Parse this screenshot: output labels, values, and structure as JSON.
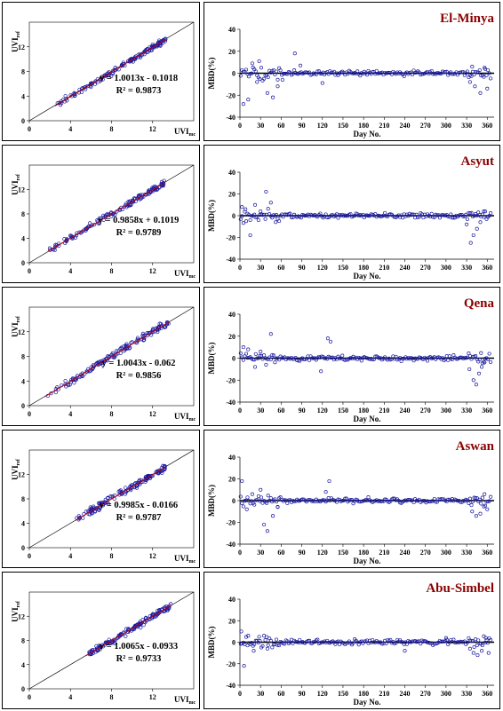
{
  "colors": {
    "marker": "#1a1aa0",
    "fit_line": "#cc0000",
    "station": "#8b0000"
  },
  "chart_data": [
    {
      "type": "scatter",
      "panel": "el-minya-scatter",
      "xlabel": "UVI",
      "xlabel_sub": "mc",
      "ylabel": "UVI",
      "ylabel_sub": "ref",
      "xlim": [
        0,
        16
      ],
      "ylim": [
        0,
        16
      ],
      "xticks": [
        "0",
        "4",
        "8",
        "12"
      ],
      "yticks": [
        "0",
        "4",
        "8",
        "12"
      ],
      "fit": {
        "slope": 1.0013,
        "intercept": -0.1018
      },
      "equation": "y = 1.0013x - 0.1018",
      "r2": "R² = 0.9873",
      "xmin": 2.5,
      "xmax": 13.3,
      "spread": 0.45,
      "seed": 11
    },
    {
      "type": "scatter",
      "panel": "el-minya-mbd",
      "xlabel": "Day No.",
      "ylabel": "MBD(%)",
      "title": "El-Minya",
      "xlim": [
        0,
        370
      ],
      "ylim": [
        -40,
        40
      ],
      "xticks": [
        "0",
        "30",
        "60",
        "90",
        "120",
        "150",
        "180",
        "210",
        "240",
        "270",
        "300",
        "330",
        "360"
      ],
      "yticks": [
        "40",
        "20",
        "0",
        "-20",
        "-40"
      ],
      "seed": 21,
      "outliers": [
        [
          5,
          -28
        ],
        [
          12,
          -24
        ],
        [
          18,
          9
        ],
        [
          25,
          -8
        ],
        [
          28,
          11
        ],
        [
          40,
          -18
        ],
        [
          48,
          -22
        ],
        [
          55,
          -12
        ],
        [
          62,
          -6
        ],
        [
          80,
          18
        ],
        [
          88,
          7
        ],
        [
          120,
          -9
        ],
        [
          335,
          -8
        ],
        [
          338,
          6
        ],
        [
          342,
          -12
        ],
        [
          350,
          -18
        ],
        [
          356,
          5
        ],
        [
          360,
          -14
        ]
      ]
    },
    {
      "type": "scatter",
      "panel": "asyut-scatter",
      "xlabel": "UVI",
      "xlabel_sub": "mc",
      "ylabel": "UVI",
      "ylabel_sub": "ref",
      "xlim": [
        0,
        16
      ],
      "ylim": [
        0,
        16
      ],
      "xticks": [
        "0",
        "4",
        "8",
        "12"
      ],
      "yticks": [
        "0",
        "4",
        "8",
        "12"
      ],
      "fit": {
        "slope": 0.9858,
        "intercept": 0.1019
      },
      "equation": "y = 0.9858x + 0.1019",
      "r2": "R² = 0.9789",
      "xmin": 1.8,
      "xmax": 13.2,
      "spread": 0.5,
      "seed": 12
    },
    {
      "type": "scatter",
      "panel": "asyut-mbd",
      "xlabel": "Day No.",
      "ylabel": "MBD(%)",
      "title": "Asyut",
      "xlim": [
        0,
        370
      ],
      "ylim": [
        -40,
        40
      ],
      "xticks": [
        "0",
        "30",
        "60",
        "90",
        "120",
        "150",
        "180",
        "210",
        "240",
        "270",
        "300",
        "330",
        "360"
      ],
      "yticks": [
        "40",
        "20",
        "0",
        "-20",
        "-40"
      ],
      "seed": 22,
      "outliers": [
        [
          3,
          8
        ],
        [
          8,
          6
        ],
        [
          15,
          -18
        ],
        [
          22,
          10
        ],
        [
          30,
          4
        ],
        [
          38,
          22
        ],
        [
          45,
          12
        ],
        [
          52,
          -6
        ],
        [
          330,
          -8
        ],
        [
          336,
          -25
        ],
        [
          340,
          -18
        ],
        [
          345,
          -12
        ],
        [
          350,
          -6
        ],
        [
          355,
          4
        ]
      ]
    },
    {
      "type": "scatter",
      "panel": "qena-scatter",
      "xlabel": "UVI",
      "xlabel_sub": "mc",
      "ylabel": "UVI",
      "ylabel_sub": "ref",
      "xlim": [
        0,
        16
      ],
      "ylim": [
        0,
        16
      ],
      "xticks": [
        "0",
        "4",
        "8",
        "12"
      ],
      "yticks": [
        "0",
        "4",
        "8",
        "12"
      ],
      "fit": {
        "slope": 1.0043,
        "intercept": -0.062
      },
      "equation": "y = 1.0043x - 0.062",
      "r2": "R² = 0.9856",
      "xmin": 1.5,
      "xmax": 13.6,
      "spread": 0.55,
      "seed": 13
    },
    {
      "type": "scatter",
      "panel": "qena-mbd",
      "xlabel": "Day No.",
      "ylabel": "MBD(%)",
      "title": "Qena",
      "xlim": [
        0,
        370
      ],
      "ylim": [
        -40,
        40
      ],
      "xticks": [
        "0",
        "30",
        "60",
        "90",
        "120",
        "150",
        "180",
        "210",
        "240",
        "270",
        "300",
        "330",
        "360"
      ],
      "yticks": [
        "40",
        "20",
        "0",
        "-20",
        "-40"
      ],
      "seed": 23,
      "outliers": [
        [
          5,
          10
        ],
        [
          12,
          8
        ],
        [
          22,
          -8
        ],
        [
          30,
          6
        ],
        [
          38,
          -6
        ],
        [
          45,
          22
        ],
        [
          128,
          18
        ],
        [
          132,
          15
        ],
        [
          118,
          -12
        ],
        [
          334,
          -10
        ],
        [
          340,
          -20
        ],
        [
          344,
          -24
        ],
        [
          348,
          -14
        ],
        [
          352,
          -8
        ],
        [
          356,
          -4
        ]
      ]
    },
    {
      "type": "scatter",
      "panel": "aswan-scatter",
      "xlabel": "UVI",
      "xlabel_sub": "mc",
      "ylabel": "UVI",
      "ylabel_sub": "ref",
      "xlim": [
        0,
        16
      ],
      "ylim": [
        0,
        16
      ],
      "xticks": [
        "0",
        "4",
        "8",
        "12"
      ],
      "yticks": [
        "0",
        "4",
        "8",
        "12"
      ],
      "fit": {
        "slope": 0.9985,
        "intercept": -0.0166
      },
      "equation": "y = 0.9985x - 0.0166",
      "r2": "R² = 0.9787",
      "xmin": 4.5,
      "xmax": 13.2,
      "spread": 0.5,
      "seed": 14
    },
    {
      "type": "scatter",
      "panel": "aswan-mbd",
      "xlabel": "Day No.",
      "ylabel": "MBD(%)",
      "title": "Aswan",
      "xlim": [
        0,
        370
      ],
      "ylim": [
        -40,
        40
      ],
      "xticks": [
        "0",
        "30",
        "60",
        "90",
        "120",
        "150",
        "180",
        "210",
        "240",
        "270",
        "300",
        "330",
        "360"
      ],
      "yticks": [
        "40",
        "20",
        "0",
        "-20",
        "-40"
      ],
      "seed": 24,
      "outliers": [
        [
          3,
          18
        ],
        [
          10,
          -8
        ],
        [
          18,
          6
        ],
        [
          30,
          10
        ],
        [
          35,
          -22
        ],
        [
          40,
          -28
        ],
        [
          48,
          -14
        ],
        [
          55,
          -6
        ],
        [
          130,
          18
        ],
        [
          125,
          8
        ],
        [
          338,
          -10
        ],
        [
          344,
          -14
        ],
        [
          350,
          -12
        ],
        [
          356,
          6
        ],
        [
          360,
          -8
        ]
      ]
    },
    {
      "type": "scatter",
      "panel": "abu-simbel-scatter",
      "xlabel": "UVI",
      "xlabel_sub": "mc",
      "ylabel": "UVI",
      "ylabel_sub": "ref",
      "xlim": [
        0,
        16
      ],
      "ylim": [
        0,
        16
      ],
      "xticks": [
        "0",
        "4",
        "8",
        "12"
      ],
      "yticks": [
        "0",
        "4",
        "8",
        "12"
      ],
      "fit": {
        "slope": 1.0065,
        "intercept": -0.0933
      },
      "equation": "y = 1.0065x - 0.0933",
      "r2": "R² = 0.9733",
      "xmin": 5.5,
      "xmax": 13.8,
      "spread": 0.5,
      "seed": 15
    },
    {
      "type": "scatter",
      "panel": "abu-simbel-mbd",
      "xlabel": "Day No.",
      "ylabel": "MBD(%)",
      "title": "Abu-Simbel",
      "xlim": [
        0,
        370
      ],
      "ylim": [
        -40,
        40
      ],
      "xticks": [
        "0",
        "30",
        "60",
        "90",
        "120",
        "150",
        "180",
        "210",
        "240",
        "270",
        "300",
        "330",
        "360"
      ],
      "yticks": [
        "40",
        "20",
        "0",
        "-20",
        "-40"
      ],
      "seed": 25,
      "outliers": [
        [
          2,
          10
        ],
        [
          6,
          -22
        ],
        [
          12,
          6
        ],
        [
          20,
          -8
        ],
        [
          28,
          5
        ],
        [
          40,
          -6
        ],
        [
          240,
          -8
        ],
        [
          300,
          4
        ],
        [
          335,
          -6
        ],
        [
          340,
          -10
        ],
        [
          346,
          -12
        ],
        [
          352,
          -8
        ],
        [
          358,
          4
        ],
        [
          362,
          -10
        ]
      ]
    }
  ]
}
